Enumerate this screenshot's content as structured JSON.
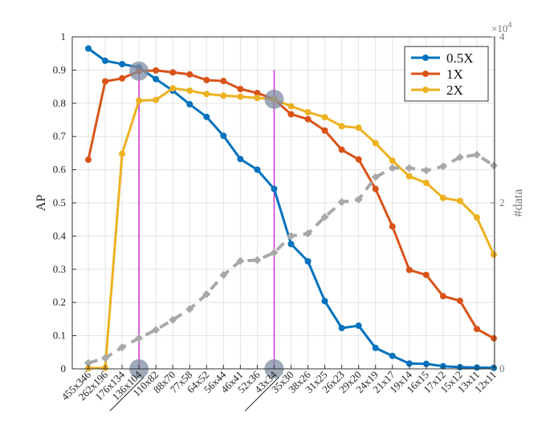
{
  "chart_data": {
    "type": "line",
    "categories": [
      "455x346",
      "262x196",
      "176x134",
      "136x104",
      "110x82",
      "88x70",
      "77x58",
      "64x52",
      "56x44",
      "46x41",
      "52x36",
      "43x34",
      "35x30",
      "38x26",
      "31x25",
      "26x23",
      "29x20",
      "24x19",
      "21x17",
      "19x14",
      "16x15",
      "17x12",
      "15x12",
      "13x11",
      "12x11"
    ],
    "underlined_categories": [
      "136x104",
      "43x34"
    ],
    "highlight_categories": [
      "136x104",
      "43x34"
    ],
    "ylabel": "AP",
    "y2label": "#data",
    "y2_exponent_label": "×10",
    "y2_exponent": "4",
    "ylim": [
      0,
      1
    ],
    "yticks": [
      "0",
      "0.1",
      "0.2",
      "0.3",
      "0.4",
      "0.5",
      "0.6",
      "0.7",
      "0.8",
      "0.9",
      "1"
    ],
    "y2lim": [
      0,
      4
    ],
    "y2ticks": [
      "0",
      "2",
      "4"
    ],
    "grid": true,
    "legend_position": "top-right",
    "series": [
      {
        "name": "0.5X",
        "color": "#0072BD",
        "axis": "left",
        "values": [
          0.965,
          0.928,
          0.918,
          0.908,
          0.873,
          0.838,
          0.797,
          0.759,
          0.702,
          0.632,
          0.6,
          0.542,
          0.376,
          0.324,
          0.204,
          0.123,
          0.13,
          0.063,
          0.039,
          0.016,
          0.015,
          0.008,
          0.005,
          0.004,
          0.003
        ]
      },
      {
        "name": "1X",
        "color": "#D95319",
        "axis": "left",
        "values": [
          0.63,
          0.866,
          0.875,
          0.897,
          0.899,
          0.893,
          0.887,
          0.87,
          0.867,
          0.843,
          0.831,
          0.812,
          0.767,
          0.752,
          0.718,
          0.66,
          0.631,
          0.542,
          0.429,
          0.298,
          0.283,
          0.219,
          0.205,
          0.12,
          0.092
        ]
      },
      {
        "name": "2X",
        "color": "#EDB120",
        "axis": "left",
        "values": [
          0.002,
          0.003,
          0.648,
          0.808,
          0.81,
          0.845,
          0.838,
          0.828,
          0.823,
          0.82,
          0.816,
          0.812,
          0.791,
          0.773,
          0.758,
          0.731,
          0.726,
          0.68,
          0.627,
          0.58,
          0.56,
          0.515,
          0.506,
          0.456,
          0.344
        ]
      },
      {
        "name": "",
        "color": "#A8A8A8",
        "axis": "right",
        "dashed": true,
        "values": [
          0.07,
          0.13,
          0.26,
          0.37,
          0.47,
          0.59,
          0.72,
          0.9,
          1.13,
          1.3,
          1.31,
          1.4,
          1.6,
          1.63,
          1.83,
          2.01,
          2.04,
          2.31,
          2.42,
          2.42,
          2.39,
          2.44,
          2.55,
          2.58,
          2.45
        ]
      }
    ]
  }
}
